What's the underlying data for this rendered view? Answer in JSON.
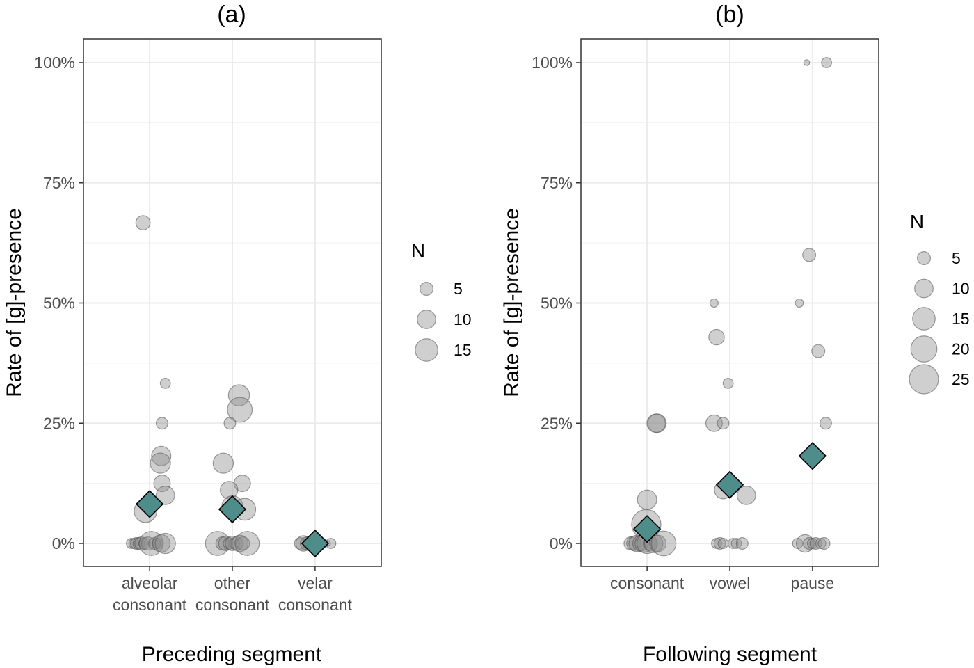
{
  "chart_data": [
    {
      "type": "scatter",
      "title": "(a)",
      "xlabel": "Preceding segment",
      "ylabel": "Rate of [g]-presence",
      "categories": [
        [
          "alveolar",
          "consonant"
        ],
        [
          "other",
          "consonant"
        ],
        [
          "velar",
          "consonant"
        ]
      ],
      "ylim": [
        0,
        100
      ],
      "yticks": [
        "0%",
        "25%",
        "50%",
        "75%",
        "100%"
      ],
      "grid": true,
      "legend": {
        "title": "N",
        "placement": "right",
        "sizes": [
          5,
          10,
          15
        ],
        "labels": [
          "5",
          "10",
          "15"
        ]
      },
      "points": [
        {
          "cat": 0,
          "dx": -0.08,
          "y": 66.7,
          "n": 6
        },
        {
          "cat": 0,
          "dx": 0.19,
          "y": 33.3,
          "n": 3
        },
        {
          "cat": 0,
          "dx": 0.15,
          "y": 25,
          "n": 4
        },
        {
          "cat": 0,
          "dx": 0.14,
          "y": 18.2,
          "n": 11
        },
        {
          "cat": 0,
          "dx": 0.13,
          "y": 16.7,
          "n": 12
        },
        {
          "cat": 0,
          "dx": 0.15,
          "y": 12.5,
          "n": 8
        },
        {
          "cat": 0,
          "dx": 0.19,
          "y": 10,
          "n": 10
        },
        {
          "cat": 0,
          "dx": -0.05,
          "y": 6.7,
          "n": 15
        },
        {
          "cat": 0,
          "dx": -0.22,
          "y": 0,
          "n": 3
        },
        {
          "cat": 0,
          "dx": -0.19,
          "y": 0,
          "n": 3
        },
        {
          "cat": 0,
          "dx": -0.16,
          "y": 0,
          "n": 4
        },
        {
          "cat": 0,
          "dx": -0.13,
          "y": 0,
          "n": 4
        },
        {
          "cat": 0,
          "dx": -0.1,
          "y": 0,
          "n": 5
        },
        {
          "cat": 0,
          "dx": -0.06,
          "y": 0,
          "n": 4
        },
        {
          "cat": 0,
          "dx": -0.02,
          "y": 0,
          "n": 5
        },
        {
          "cat": 0,
          "dx": 0.02,
          "y": 0,
          "n": 17
        },
        {
          "cat": 0,
          "dx": 0.06,
          "y": 0,
          "n": 4
        },
        {
          "cat": 0,
          "dx": 0.1,
          "y": 0,
          "n": 3
        },
        {
          "cat": 0,
          "dx": 0.14,
          "y": 0,
          "n": 9
        },
        {
          "cat": 0,
          "dx": 0.19,
          "y": 0,
          "n": 12
        },
        {
          "cat": 1,
          "dx": 0.08,
          "y": 30.8,
          "n": 13
        },
        {
          "cat": 1,
          "dx": 0.09,
          "y": 27.8,
          "n": 18
        },
        {
          "cat": 1,
          "dx": -0.03,
          "y": 25,
          "n": 4
        },
        {
          "cat": 1,
          "dx": -0.11,
          "y": 16.7,
          "n": 12
        },
        {
          "cat": 1,
          "dx": 0.12,
          "y": 12.5,
          "n": 8
        },
        {
          "cat": 1,
          "dx": -0.04,
          "y": 11.1,
          "n": 9
        },
        {
          "cat": 1,
          "dx": 0.0,
          "y": 7.7,
          "n": 13
        },
        {
          "cat": 1,
          "dx": 0.15,
          "y": 7.1,
          "n": 14
        },
        {
          "cat": 1,
          "dx": -0.18,
          "y": 0,
          "n": 17
        },
        {
          "cat": 1,
          "dx": -0.12,
          "y": 0,
          "n": 5
        },
        {
          "cat": 1,
          "dx": -0.08,
          "y": 0,
          "n": 6
        },
        {
          "cat": 1,
          "dx": -0.04,
          "y": 0,
          "n": 4
        },
        {
          "cat": 1,
          "dx": 0.0,
          "y": 0,
          "n": 6
        },
        {
          "cat": 1,
          "dx": 0.05,
          "y": 0,
          "n": 5
        },
        {
          "cat": 1,
          "dx": 0.09,
          "y": 0,
          "n": 8
        },
        {
          "cat": 1,
          "dx": 0.13,
          "y": 0,
          "n": 5
        },
        {
          "cat": 1,
          "dx": 0.18,
          "y": 0,
          "n": 17
        },
        {
          "cat": 2,
          "dx": -0.18,
          "y": 0,
          "n": 4
        },
        {
          "cat": 2,
          "dx": -0.14,
          "y": 0,
          "n": 7
        },
        {
          "cat": 2,
          "dx": -0.1,
          "y": 0,
          "n": 5
        },
        {
          "cat": 2,
          "dx": -0.06,
          "y": 0,
          "n": 6
        },
        {
          "cat": 2,
          "dx": -0.02,
          "y": 0,
          "n": 4
        },
        {
          "cat": 2,
          "dx": 0.06,
          "y": 0,
          "n": 3
        },
        {
          "cat": 2,
          "dx": 0.1,
          "y": 0,
          "n": 2
        },
        {
          "cat": 2,
          "dx": 0.15,
          "y": 0,
          "n": 1
        },
        {
          "cat": 2,
          "dx": 0.19,
          "y": 0,
          "n": 3
        }
      ],
      "means": [
        8.2,
        7.1,
        0
      ],
      "colors": {
        "point": "#8c8c8c",
        "point_stroke": "#505050",
        "mean": "#4f8d8b",
        "mean_stroke": "#000000"
      }
    },
    {
      "type": "scatter",
      "title": "(b)",
      "xlabel": "Following segment",
      "ylabel": "Rate of [g]-presence",
      "categories": [
        [
          "consonant"
        ],
        [
          "vowel"
        ],
        [
          "pause"
        ]
      ],
      "ylim": [
        0,
        100
      ],
      "yticks": [
        "0%",
        "25%",
        "50%",
        "75%",
        "100%"
      ],
      "grid": true,
      "legend": {
        "title": "N",
        "placement": "right",
        "sizes": [
          5,
          10,
          15,
          20,
          25
        ],
        "labels": [
          "5",
          "10",
          "15",
          "20",
          "25"
        ]
      },
      "points": [
        {
          "cat": 0,
          "dx": 0.12,
          "y": 25,
          "n": 10
        },
        {
          "cat": 0,
          "dx": 0.11,
          "y": 25,
          "n": 10
        },
        {
          "cat": 0,
          "dx": 0.0,
          "y": 9.1,
          "n": 11
        },
        {
          "cat": 0,
          "dx": -0.01,
          "y": 4,
          "n": 25
        },
        {
          "cat": 0,
          "dx": -0.2,
          "y": 0,
          "n": 5
        },
        {
          "cat": 0,
          "dx": -0.16,
          "y": 0,
          "n": 6
        },
        {
          "cat": 0,
          "dx": -0.12,
          "y": 0,
          "n": 8
        },
        {
          "cat": 0,
          "dx": -0.08,
          "y": 0,
          "n": 7
        },
        {
          "cat": 0,
          "dx": -0.04,
          "y": 0,
          "n": 9
        },
        {
          "cat": 0,
          "dx": 0.0,
          "y": 0,
          "n": 12
        },
        {
          "cat": 0,
          "dx": 0.04,
          "y": 0,
          "n": 6
        },
        {
          "cat": 0,
          "dx": 0.08,
          "y": 0,
          "n": 10
        },
        {
          "cat": 0,
          "dx": 0.13,
          "y": 0,
          "n": 8
        },
        {
          "cat": 0,
          "dx": 0.2,
          "y": 0,
          "n": 18
        },
        {
          "cat": 1,
          "dx": -0.19,
          "y": 50,
          "n": 2
        },
        {
          "cat": 1,
          "dx": -0.16,
          "y": 42.9,
          "n": 7
        },
        {
          "cat": 1,
          "dx": -0.02,
          "y": 33.3,
          "n": 3
        },
        {
          "cat": 1,
          "dx": -0.19,
          "y": 25,
          "n": 8
        },
        {
          "cat": 1,
          "dx": -0.08,
          "y": 25,
          "n": 4
        },
        {
          "cat": 1,
          "dx": 0.2,
          "y": 10,
          "n": 10
        },
        {
          "cat": 1,
          "dx": -0.08,
          "y": 11.1,
          "n": 9
        },
        {
          "cat": 1,
          "dx": -0.16,
          "y": 0,
          "n": 3
        },
        {
          "cat": 1,
          "dx": -0.12,
          "y": 0,
          "n": 4
        },
        {
          "cat": 1,
          "dx": -0.08,
          "y": 0,
          "n": 3
        },
        {
          "cat": 1,
          "dx": 0.04,
          "y": 0,
          "n": 3
        },
        {
          "cat": 1,
          "dx": 0.08,
          "y": 0,
          "n": 3
        },
        {
          "cat": 1,
          "dx": 0.15,
          "y": 0,
          "n": 4
        },
        {
          "cat": 2,
          "dx": -0.07,
          "y": 100,
          "n": 1
        },
        {
          "cat": 2,
          "dx": 0.17,
          "y": 100,
          "n": 3
        },
        {
          "cat": 2,
          "dx": -0.04,
          "y": 60,
          "n": 5
        },
        {
          "cat": 2,
          "dx": -0.16,
          "y": 50,
          "n": 2
        },
        {
          "cat": 2,
          "dx": 0.07,
          "y": 40,
          "n": 5
        },
        {
          "cat": 2,
          "dx": 0.16,
          "y": 25,
          "n": 4
        },
        {
          "cat": 2,
          "dx": -0.18,
          "y": 0,
          "n": 3
        },
        {
          "cat": 2,
          "dx": -0.09,
          "y": 0,
          "n": 9
        },
        {
          "cat": 2,
          "dx": -0.04,
          "y": 0,
          "n": 4
        },
        {
          "cat": 2,
          "dx": 0.0,
          "y": 0,
          "n": 3
        },
        {
          "cat": 2,
          "dx": 0.04,
          "y": 0,
          "n": 4
        },
        {
          "cat": 2,
          "dx": 0.1,
          "y": 0,
          "n": 3
        },
        {
          "cat": 2,
          "dx": 0.14,
          "y": 0,
          "n": 4
        }
      ],
      "means": [
        3,
        12.2,
        18.2
      ],
      "colors": {
        "point": "#8c8c8c",
        "point_stroke": "#505050",
        "mean": "#4f8d8b",
        "mean_stroke": "#000000"
      }
    }
  ]
}
